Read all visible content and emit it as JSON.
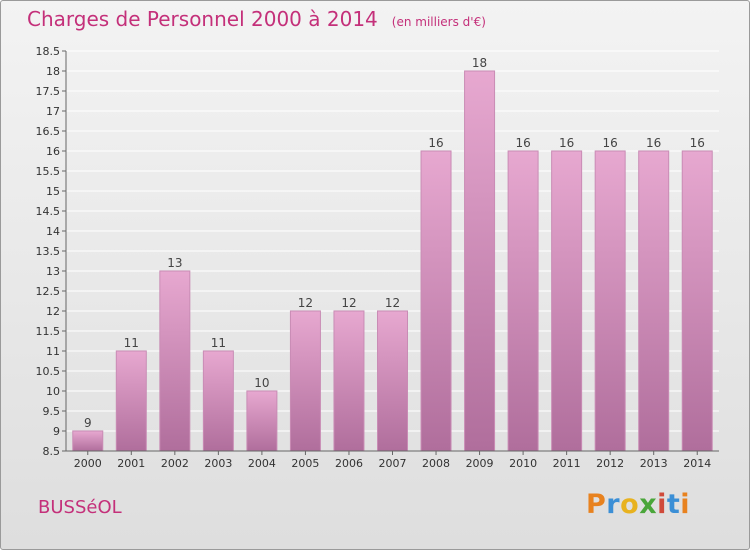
{
  "header": {
    "title": "Charges de Personnel 2000 à 2014",
    "subtitle": "(en milliers d'€)"
  },
  "footer": {
    "city": "BUSSéOL",
    "brand": [
      "P",
      "r",
      "o",
      "x",
      "i",
      "t",
      "i"
    ]
  },
  "colors": {
    "title": "#c4307a",
    "bar_top": "#e7a8d0",
    "bar_bottom": "#b06e9c",
    "bar_border": "#c98cb5"
  },
  "chart_data": {
    "type": "bar",
    "title": "Charges de Personnel 2000 à 2014",
    "subtitle": "(en milliers d'€)",
    "categories": [
      "2000",
      "2001",
      "2002",
      "2003",
      "2004",
      "2005",
      "2006",
      "2007",
      "2008",
      "2009",
      "2010",
      "2011",
      "2012",
      "2013",
      "2014"
    ],
    "values": [
      9,
      11,
      13,
      11,
      10,
      12,
      12,
      12,
      16,
      18,
      16,
      16,
      16,
      16,
      16
    ],
    "ylim": [
      8.5,
      18.5
    ],
    "yticks": [
      "8.5",
      "9",
      "9.5",
      "10",
      "10.5",
      "11",
      "11.5",
      "12",
      "12.5",
      "13",
      "13.5",
      "14",
      "14.5",
      "15",
      "15.5",
      "16",
      "16.5",
      "17",
      "17.5",
      "18",
      "18.5"
    ],
    "grid": true,
    "xlabel": "",
    "ylabel": ""
  }
}
